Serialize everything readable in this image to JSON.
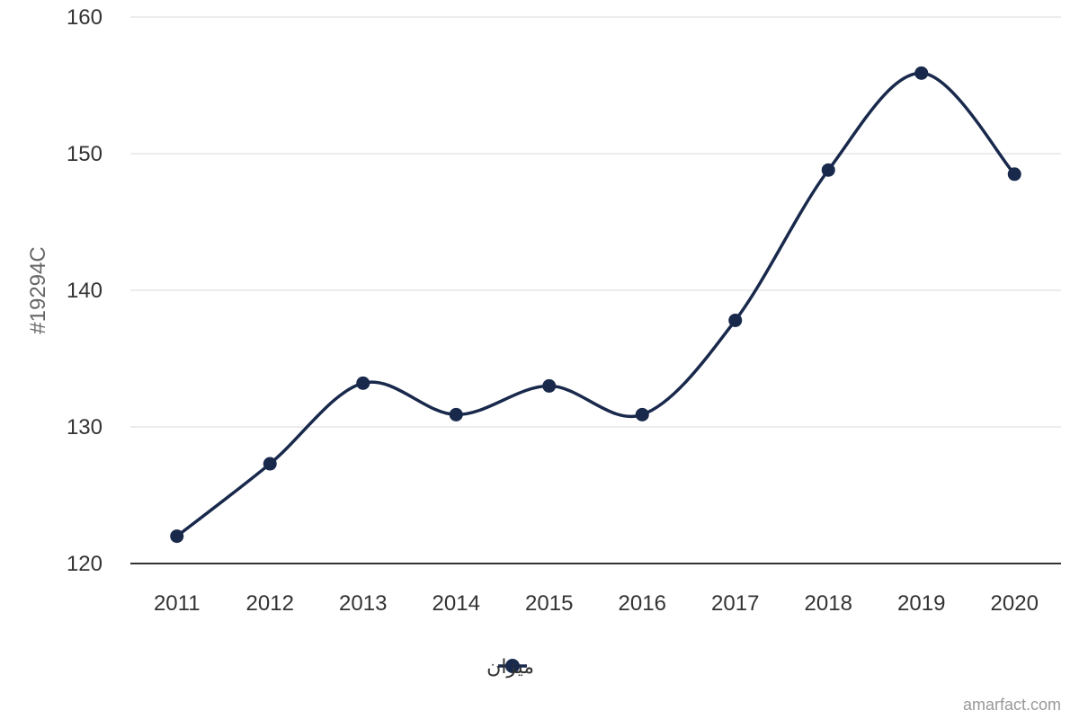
{
  "chart_data": {
    "type": "line",
    "x": [
      "2011",
      "2012",
      "2013",
      "2014",
      "2015",
      "2016",
      "2017",
      "2018",
      "2019",
      "2020"
    ],
    "series": [
      {
        "name": "میزان",
        "values": [
          122.0,
          127.3,
          133.2,
          130.9,
          133.0,
          130.9,
          137.8,
          148.8,
          155.9,
          148.5
        ]
      }
    ],
    "ylabel": "#19294C",
    "ylim": [
      120,
      160
    ],
    "yticks": [
      120,
      130,
      140,
      150,
      160
    ],
    "grid": true,
    "legend": "bottom-center",
    "line_color": "#19294C"
  },
  "credit": "amarfact.com"
}
